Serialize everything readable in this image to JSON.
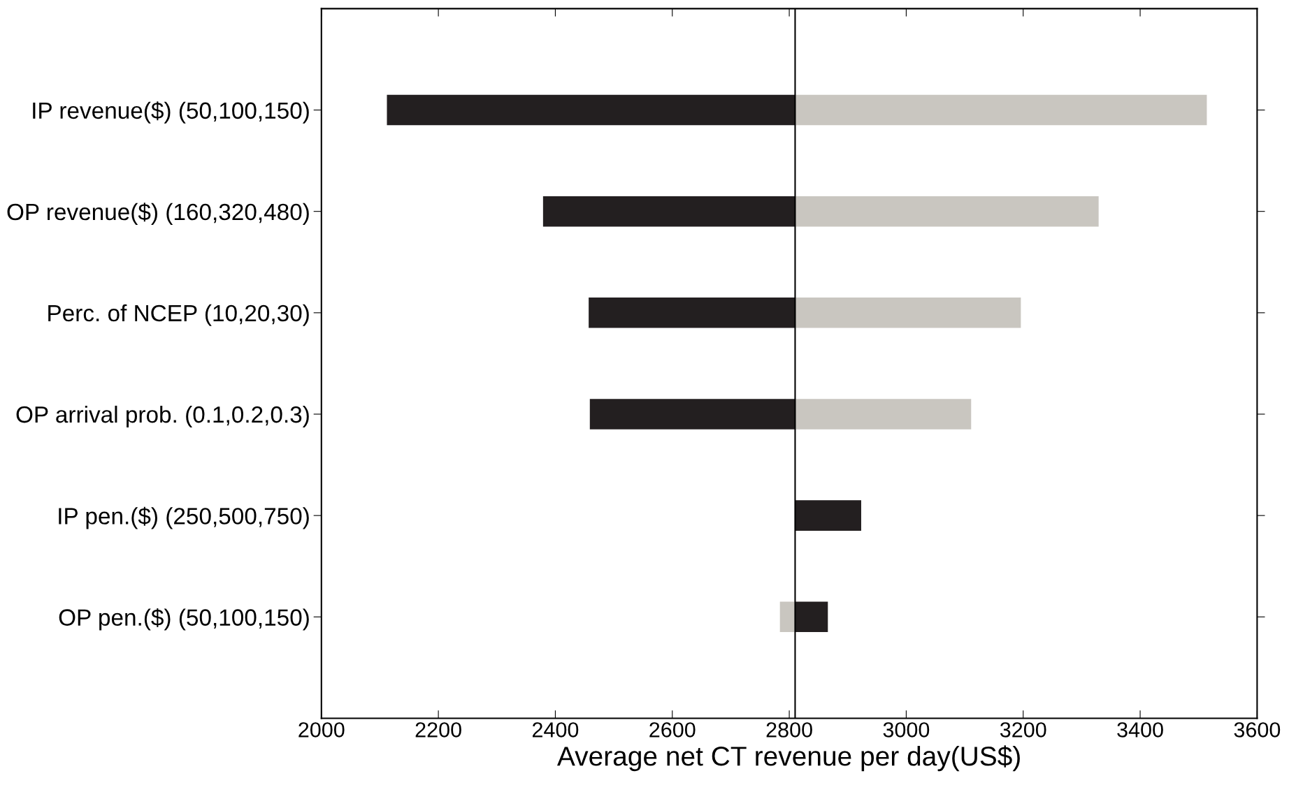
{
  "chart_data": {
    "type": "bar",
    "orientation": "horizontal",
    "xlabel": "Average net CT revenue per day(US$)",
    "categories": [
      "IP revenue($) (50,100,150)",
      "OP revenue($) (160,320,480)",
      "Perc. of NCEP (10,20,30)",
      "OP arrival prob. (0.1,0.2,0.3)",
      "IP pen.($) (250,500,750)",
      "OP pen.($) (50,100,150)"
    ],
    "series": [
      {
        "color": "#231f20",
        "base": [
          2112,
          2379,
          2457,
          2459,
          2810,
          2810
        ],
        "values": [
          698,
          431,
          353,
          351,
          113,
          56
        ]
      },
      {
        "color": "#c9c6c0",
        "base": [
          2810,
          2810,
          2810,
          2810,
          null,
          2784
        ],
        "values": [
          704,
          519,
          386,
          301,
          null,
          26
        ]
      }
    ],
    "xlim": [
      2000,
      3600
    ],
    "xticks": [
      2000,
      2200,
      2400,
      2600,
      2800,
      3000,
      3200,
      3400,
      3600
    ],
    "ref_lines": [
      {
        "axis": "x",
        "value": 2810,
        "color": "#000000"
      }
    ],
    "grid": false,
    "legend": false
  }
}
